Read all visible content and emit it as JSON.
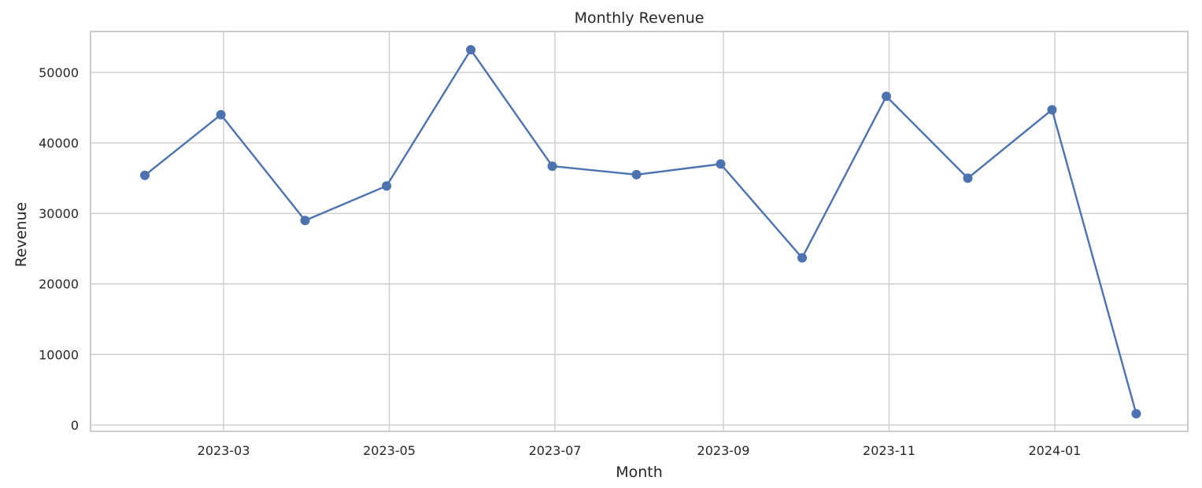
{
  "chart_data": {
    "type": "line",
    "title": "Monthly Revenue",
    "xlabel": "Month",
    "ylabel": "Revenue",
    "xlim": [
      "2023-01-11",
      "2024-02-19"
    ],
    "ylim": [
      -900,
      55800
    ],
    "grid": true,
    "legend": "none",
    "x_ticks": [
      "2023-03",
      "2023-05",
      "2023-07",
      "2023-09",
      "2023-11",
      "2024-01"
    ],
    "y_ticks": [
      0,
      10000,
      20000,
      30000,
      40000,
      50000
    ],
    "series": [
      {
        "color": "#4c72b0",
        "x": [
          "2023-01-31",
          "2023-02-28",
          "2023-03-31",
          "2023-04-30",
          "2023-05-31",
          "2023-06-30",
          "2023-07-31",
          "2023-08-31",
          "2023-09-30",
          "2023-10-31",
          "2023-11-30",
          "2023-12-31",
          "2024-01-31"
        ],
        "values": [
          35400,
          44000,
          29000,
          33900,
          53200,
          36700,
          35500,
          37000,
          23700,
          46600,
          35000,
          44700,
          1600
        ]
      }
    ]
  }
}
